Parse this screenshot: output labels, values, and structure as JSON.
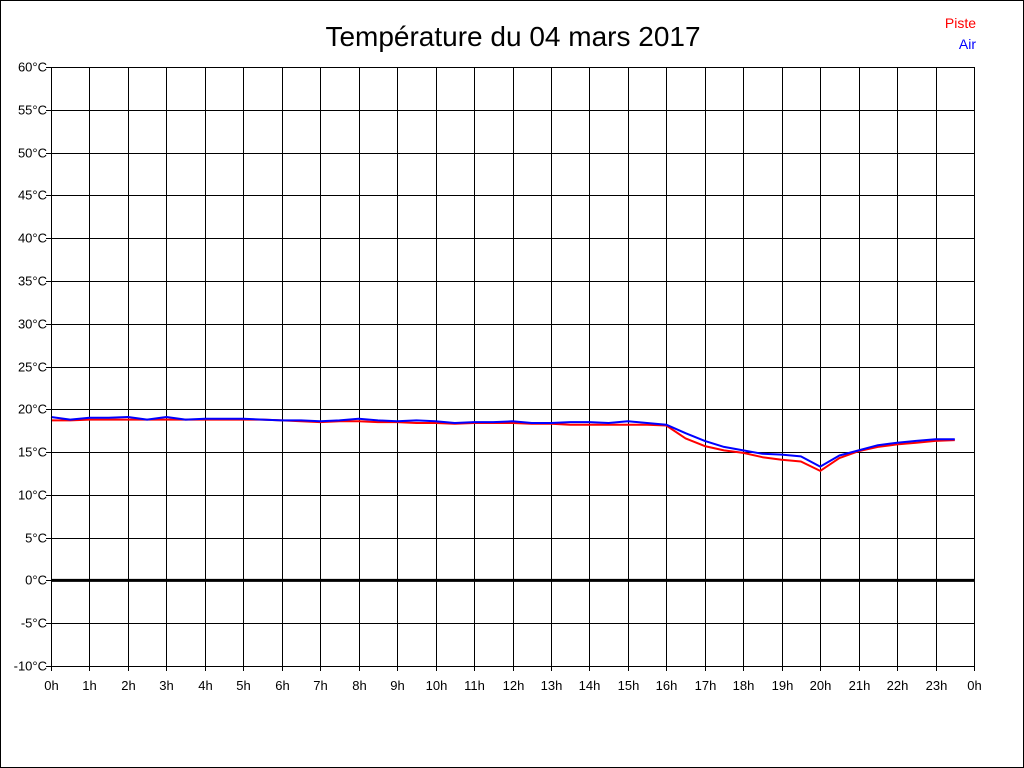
{
  "chart_data": {
    "type": "line",
    "title": "Température du 04 mars 2017",
    "xlabel": "",
    "ylabel": "",
    "ylim": [
      -10,
      60
    ],
    "y_step": 5,
    "y_unit": "°C",
    "xlim": [
      0,
      24
    ],
    "x_ticks": [
      "0h",
      "1h",
      "2h",
      "3h",
      "4h",
      "5h",
      "6h",
      "7h",
      "8h",
      "9h",
      "10h",
      "11h",
      "12h",
      "13h",
      "14h",
      "15h",
      "16h",
      "17h",
      "18h",
      "19h",
      "20h",
      "21h",
      "22h",
      "23h",
      "0h"
    ],
    "grid": true,
    "zero_line": true,
    "legend_position": "top-right",
    "x": [
      0,
      0.5,
      1,
      1.5,
      2,
      2.5,
      3,
      3.5,
      4,
      4.5,
      5,
      5.5,
      6,
      6.5,
      7,
      7.5,
      8,
      8.5,
      9,
      9.5,
      10,
      10.5,
      11,
      11.5,
      12,
      12.5,
      13,
      13.5,
      14,
      14.5,
      15,
      15.5,
      16,
      16.5,
      17,
      17.5,
      18,
      18.5,
      19,
      19.5,
      20,
      20.5,
      21,
      21.5,
      22,
      22.5,
      23,
      23.5
    ],
    "series": [
      {
        "name": "Piste",
        "color": "#ff0000",
        "values": [
          18.7,
          18.7,
          18.8,
          18.8,
          18.8,
          18.8,
          18.8,
          18.8,
          18.8,
          18.8,
          18.8,
          18.8,
          18.7,
          18.6,
          18.5,
          18.6,
          18.6,
          18.5,
          18.5,
          18.4,
          18.4,
          18.3,
          18.4,
          18.4,
          18.4,
          18.3,
          18.3,
          18.2,
          18.2,
          18.2,
          18.2,
          18.2,
          18.1,
          16.6,
          15.7,
          15.2,
          14.9,
          14.4,
          14.1,
          13.9,
          12.8,
          14.3,
          15.1,
          15.6,
          15.9,
          16.1,
          16.3,
          16.4
        ]
      },
      {
        "name": "Air",
        "color": "#0000ff",
        "values": [
          19.1,
          18.8,
          19.0,
          19.0,
          19.1,
          18.8,
          19.1,
          18.8,
          18.9,
          18.9,
          18.9,
          18.8,
          18.7,
          18.7,
          18.6,
          18.7,
          18.9,
          18.7,
          18.6,
          18.7,
          18.6,
          18.4,
          18.5,
          18.5,
          18.6,
          18.4,
          18.4,
          18.5,
          18.5,
          18.4,
          18.6,
          18.4,
          18.2,
          17.2,
          16.3,
          15.6,
          15.2,
          14.8,
          14.7,
          14.5,
          13.3,
          14.6,
          15.2,
          15.8,
          16.1,
          16.3,
          16.5,
          16.5
        ]
      }
    ]
  }
}
